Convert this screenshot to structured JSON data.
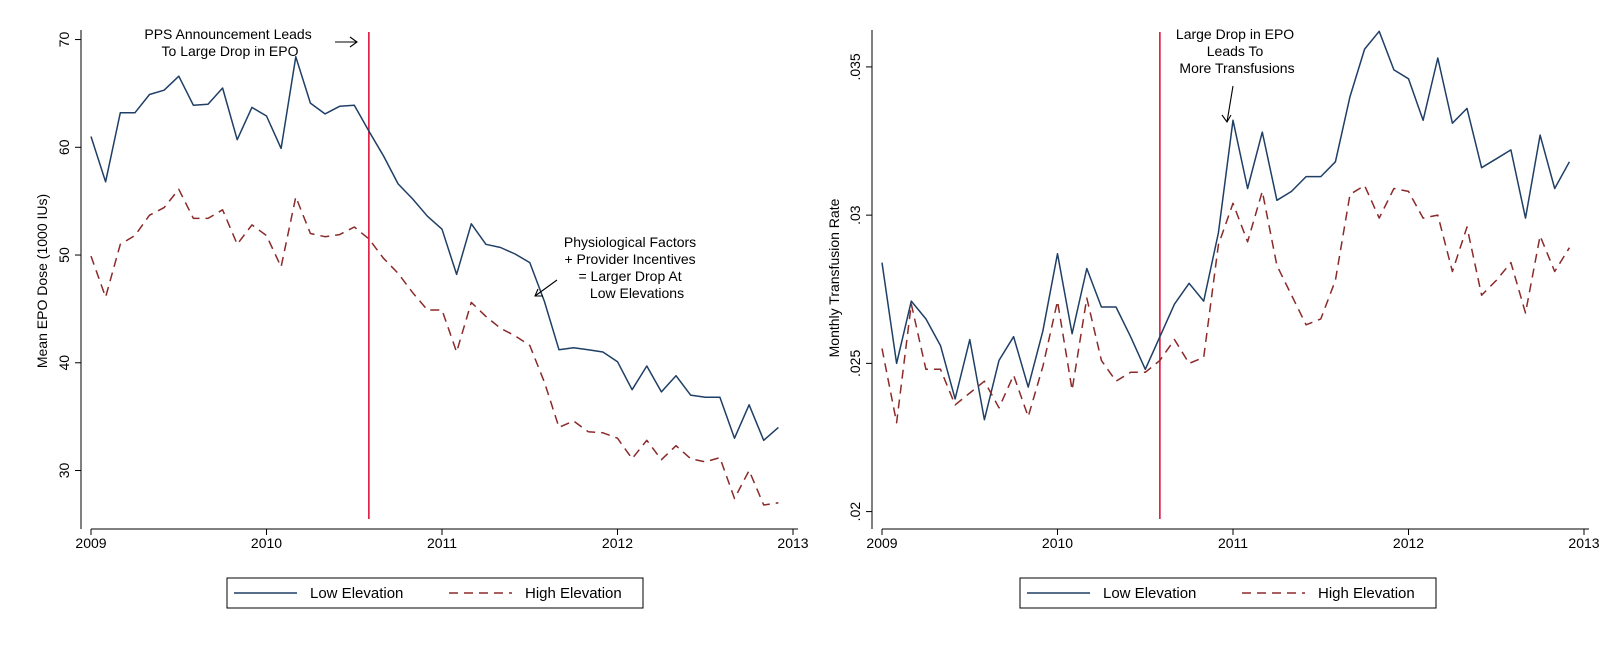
{
  "chart_data": [
    {
      "type": "line",
      "title": "",
      "xlabel": "",
      "ylabel": "Mean EPO Dose (1000 IUs)",
      "xlim": [
        2009,
        2013
      ],
      "ylim": [
        25.5,
        72
      ],
      "xticks": [
        2009,
        2010,
        2011,
        2012,
        2013
      ],
      "xtick_labels": [
        "2009",
        "2010",
        "2011",
        "2012",
        "2013"
      ],
      "yticks": [
        30,
        40,
        50,
        60,
        70
      ],
      "ytick_labels": [
        "30",
        "40",
        "50",
        "60",
        "70"
      ],
      "grid": false,
      "legend_position": "bottom",
      "event_line_x": 2010.5833,
      "x": [
        2009.0,
        2009.0833,
        2009.1667,
        2009.25,
        2009.3333,
        2009.4167,
        2009.5,
        2009.5833,
        2009.6667,
        2009.75,
        2009.8333,
        2009.9167,
        2010.0,
        2010.0833,
        2010.1667,
        2010.25,
        2010.3333,
        2010.4167,
        2010.5,
        2010.5833,
        2010.6667,
        2010.75,
        2010.8333,
        2010.9167,
        2011.0,
        2011.0833,
        2011.1667,
        2011.25,
        2011.3333,
        2011.4167,
        2011.5,
        2011.5833,
        2011.6667,
        2011.75,
        2011.8333,
        2011.9167,
        2012.0,
        2012.0833,
        2012.1667,
        2012.25,
        2012.3333,
        2012.4167,
        2012.5,
        2012.5833,
        2012.6667,
        2012.75,
        2012.8333,
        2012.9167
      ],
      "series": [
        {
          "name": "Low Elevation",
          "color": "#1f3f66",
          "dash": "solid",
          "values": [
            61.0,
            56.8,
            63.2,
            63.2,
            64.9,
            65.3,
            66.6,
            63.9,
            64.0,
            65.5,
            60.7,
            63.7,
            62.9,
            59.9,
            68.4,
            64.1,
            63.1,
            63.8,
            63.9,
            61.5,
            59.2,
            56.6,
            55.2,
            53.6,
            52.4,
            48.2,
            52.9,
            51.0,
            50.7,
            50.1,
            49.3,
            45.7,
            41.2,
            41.4,
            41.2,
            41.0,
            40.1,
            37.5,
            39.7,
            37.3,
            38.8,
            37.0,
            36.8,
            36.8,
            33.0,
            36.1,
            32.8,
            34.0
          ]
        },
        {
          "name": "High Elevation",
          "color": "#8b2a2a",
          "dash": "dashed",
          "values": [
            49.9,
            46.1,
            51.0,
            51.8,
            53.7,
            54.4,
            56.1,
            53.4,
            53.4,
            54.2,
            51.0,
            52.8,
            51.8,
            48.9,
            55.4,
            52.0,
            51.7,
            51.9,
            52.6,
            51.5,
            49.7,
            48.3,
            46.5,
            44.9,
            44.9,
            41.0,
            45.6,
            44.3,
            43.2,
            42.5,
            41.6,
            38.2,
            34.0,
            34.6,
            33.6,
            33.5,
            33.0,
            31.1,
            32.8,
            31.0,
            32.3,
            31.1,
            30.8,
            31.2,
            27.4,
            30.0,
            26.8,
            27.0
          ]
        }
      ],
      "annotations": [
        {
          "lines": [
            "PPS Announcement Leads",
            "To Large Drop in EPO"
          ]
        },
        {
          "lines": [
            "Physiological Factors",
            "+ Provider Incentives",
            "= Larger Drop At",
            "Low Elevations"
          ]
        }
      ]
    },
    {
      "type": "line",
      "title": "",
      "xlabel": "",
      "ylabel": "Monthly Transfusion Rate",
      "xlim": [
        2009,
        2013
      ],
      "ylim": [
        0.01975,
        0.03665
      ],
      "xticks": [
        2009,
        2010,
        2011,
        2012,
        2013
      ],
      "xtick_labels": [
        "2009",
        "2010",
        "2011",
        "2012",
        "2013"
      ],
      "yticks": [
        0.02,
        0.025,
        0.03,
        0.035
      ],
      "ytick_labels": [
        ".02",
        ".025",
        ".03",
        ".035"
      ],
      "grid": false,
      "legend_position": "bottom",
      "event_line_x": 2010.5833,
      "x": [
        2009.0,
        2009.0833,
        2009.1667,
        2009.25,
        2009.3333,
        2009.4167,
        2009.5,
        2009.5833,
        2009.6667,
        2009.75,
        2009.8333,
        2009.9167,
        2010.0,
        2010.0833,
        2010.1667,
        2010.25,
        2010.3333,
        2010.4167,
        2010.5,
        2010.5833,
        2010.6667,
        2010.75,
        2010.8333,
        2010.9167,
        2011.0,
        2011.0833,
        2011.1667,
        2011.25,
        2011.3333,
        2011.4167,
        2011.5,
        2011.5833,
        2011.6667,
        2011.75,
        2011.8333,
        2011.9167,
        2012.0,
        2012.0833,
        2012.1667,
        2012.25,
        2012.3333,
        2012.4167,
        2012.5,
        2012.5833,
        2012.6667,
        2012.75,
        2012.8333,
        2012.9167
      ],
      "series": [
        {
          "name": "Low Elevation",
          "color": "#1f3f66",
          "dash": "solid",
          "values": [
            0.0284,
            0.025,
            0.0271,
            0.0265,
            0.0256,
            0.0238,
            0.0258,
            0.0231,
            0.0251,
            0.0259,
            0.0242,
            0.0261,
            0.0287,
            0.026,
            0.0282,
            0.0269,
            0.0269,
            0.0259,
            0.0248,
            0.0259,
            0.027,
            0.0277,
            0.0271,
            0.0294,
            0.0332,
            0.0309,
            0.0328,
            0.0305,
            0.0308,
            0.0313,
            0.0313,
            0.0318,
            0.034,
            0.0356,
            0.0362,
            0.0349,
            0.0346,
            0.0332,
            0.0353,
            0.0331,
            0.0336,
            0.0316,
            0.0319,
            0.0322,
            0.0299,
            0.0327,
            0.0309,
            0.0318
          ]
        },
        {
          "name": "High Elevation",
          "color": "#8b2a2a",
          "dash": "dashed",
          "values": [
            0.0255,
            0.023,
            0.027,
            0.0248,
            0.0248,
            0.0236,
            0.024,
            0.0244,
            0.0235,
            0.0246,
            0.0232,
            0.0249,
            0.0271,
            0.0241,
            0.0272,
            0.0251,
            0.0244,
            0.0247,
            0.0247,
            0.0251,
            0.0258,
            0.025,
            0.0252,
            0.029,
            0.0304,
            0.0291,
            0.0308,
            0.0283,
            0.0273,
            0.0263,
            0.0265,
            0.0278,
            0.0307,
            0.031,
            0.0299,
            0.0309,
            0.0308,
            0.0299,
            0.03,
            0.0281,
            0.0296,
            0.0273,
            0.0278,
            0.0284,
            0.0267,
            0.0293,
            0.0281,
            0.0289
          ]
        }
      ],
      "annotations": [
        {
          "lines": [
            "Large Drop in EPO",
            "Leads To",
            "More Transfusions"
          ]
        }
      ]
    }
  ],
  "colors": {
    "event_line": "#e0143c",
    "axis": "#000000",
    "background": "#ffffff"
  }
}
